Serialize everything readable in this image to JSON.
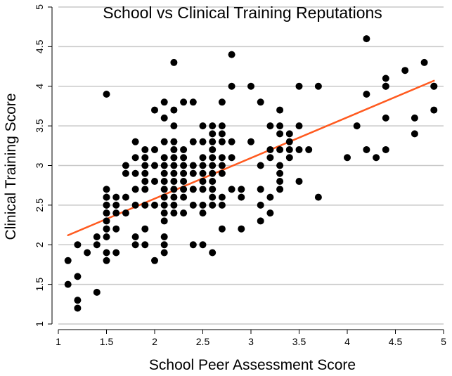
{
  "chart_data": {
    "type": "scatter",
    "title": "School vs Clinical Training Reputations",
    "xlabel": "School Peer Assessment Score",
    "ylabel": "Clinical Training Score",
    "xlim": [
      1,
      5
    ],
    "ylim": [
      1,
      5
    ],
    "x_ticks": [
      "1",
      "1.5",
      "2",
      "2.5",
      "3",
      "3.5",
      "4",
      "4.5",
      "5"
    ],
    "y_ticks": [
      "1",
      "1.5",
      "2",
      "2.5",
      "3",
      "3.5",
      "4",
      "4.5",
      "5"
    ],
    "grid": "horizontal",
    "colors": {
      "points": "#000000",
      "trendline": "#ff5a1f",
      "grid": "#c8c8c8",
      "axis": "#000000"
    },
    "trendline": {
      "x": [
        1.1,
        4.9
      ],
      "y": [
        2.12,
        4.07
      ]
    },
    "points": {
      "x": [
        1.1,
        1.1,
        1.2,
        1.2,
        1.2,
        1.2,
        1.3,
        1.4,
        1.4,
        1.4,
        1.5,
        1.5,
        1.5,
        1.5,
        1.5,
        1.5,
        1.5,
        1.5,
        1.5,
        1.5,
        1.5,
        1.5,
        1.5,
        1.5,
        1.6,
        1.6,
        1.6,
        1.6,
        1.6,
        1.7,
        1.7,
        1.7,
        1.7,
        1.8,
        1.8,
        1.8,
        1.8,
        1.8,
        1.8,
        1.8,
        1.9,
        1.9,
        1.9,
        1.9,
        1.9,
        1.9,
        1.9,
        1.9,
        1.9,
        2.0,
        2.0,
        2.0,
        2.0,
        2.0,
        2.0,
        2.1,
        2.1,
        2.1,
        2.1,
        2.1,
        2.1,
        2.1,
        2.1,
        2.1,
        2.1,
        2.1,
        2.1,
        2.1,
        2.1,
        2.1,
        2.2,
        2.2,
        2.2,
        2.2,
        2.2,
        2.2,
        2.2,
        2.2,
        2.2,
        2.2,
        2.2,
        2.2,
        2.2,
        2.3,
        2.3,
        2.3,
        2.3,
        2.3,
        2.3,
        2.3,
        2.3,
        2.3,
        2.4,
        2.4,
        2.4,
        2.4,
        2.4,
        2.4,
        2.4,
        2.5,
        2.5,
        2.5,
        2.5,
        2.5,
        2.5,
        2.5,
        2.5,
        2.5,
        2.5,
        2.6,
        2.6,
        2.6,
        2.6,
        2.6,
        2.6,
        2.6,
        2.6,
        2.6,
        2.6,
        2.6,
        2.6,
        2.7,
        2.7,
        2.7,
        2.7,
        2.7,
        2.7,
        2.7,
        2.7,
        2.7,
        2.7,
        2.8,
        2.8,
        2.8,
        2.8,
        2.8,
        2.9,
        2.9,
        2.9,
        3.0,
        3.0,
        3.1,
        3.1,
        3.1,
        3.1,
        3.1,
        3.2,
        3.2,
        3.2,
        3.2,
        3.2,
        3.3,
        3.3,
        3.3,
        3.3,
        3.3,
        3.3,
        3.3,
        3.3,
        3.4,
        3.4,
        3.4,
        3.4,
        3.5,
        3.5,
        3.5,
        3.5,
        3.6,
        3.7,
        3.7,
        4.0,
        4.1,
        4.2,
        4.2,
        4.2,
        4.3,
        4.4,
        4.4,
        4.4,
        4.4,
        4.4,
        4.6,
        4.7,
        4.7,
        4.8,
        4.9,
        4.9,
        4.9
      ],
      "y": [
        1.8,
        1.5,
        2.0,
        1.6,
        1.3,
        1.2,
        1.9,
        2.1,
        2.0,
        1.4,
        3.9,
        2.7,
        2.6,
        2.5,
        2.4,
        2.3,
        2.2,
        2.1,
        1.9,
        1.8,
        2.6,
        2.5,
        2.4,
        2.2,
        2.6,
        2.5,
        2.4,
        2.2,
        1.9,
        3.0,
        2.9,
        2.6,
        2.4,
        3.3,
        3.1,
        2.9,
        2.7,
        2.5,
        2.1,
        2.0,
        3.2,
        3.1,
        3.0,
        2.9,
        2.8,
        2.7,
        2.5,
        2.2,
        2.0,
        3.7,
        3.2,
        3.0,
        2.8,
        2.5,
        1.8,
        3.8,
        3.6,
        3.3,
        3.1,
        3.0,
        2.9,
        2.8,
        2.7,
        2.6,
        2.5,
        2.4,
        2.3,
        2.1,
        2.0,
        1.9,
        4.3,
        3.7,
        3.5,
        3.3,
        3.2,
        3.1,
        3.0,
        2.9,
        2.8,
        2.7,
        2.6,
        2.5,
        2.4,
        3.8,
        3.2,
        3.1,
        3.0,
        2.9,
        2.8,
        2.7,
        2.6,
        2.4,
        3.8,
        3.3,
        3.0,
        2.9,
        2.7,
        2.5,
        2.0,
        3.5,
        3.3,
        3.1,
        3.0,
        2.9,
        2.8,
        2.7,
        2.5,
        2.4,
        2.0,
        3.5,
        3.4,
        3.3,
        3.2,
        3.1,
        3.0,
        2.9,
        2.8,
        2.7,
        2.6,
        2.5,
        1.9,
        3.8,
        3.5,
        3.4,
        3.3,
        3.1,
        3.0,
        2.9,
        2.6,
        2.5,
        2.2,
        4.4,
        4.0,
        3.3,
        3.1,
        2.7,
        2.7,
        2.6,
        2.2,
        4.0,
        3.3,
        3.8,
        3.0,
        2.7,
        2.5,
        2.3,
        3.5,
        3.2,
        3.1,
        2.6,
        2.4,
        3.7,
        3.5,
        3.4,
        3.2,
        3.0,
        2.9,
        2.8,
        2.7,
        3.4,
        3.3,
        3.2,
        3.1,
        4.0,
        3.5,
        3.2,
        2.8,
        3.2,
        4.0,
        2.6,
        3.1,
        3.5,
        4.6,
        3.9,
        3.2,
        3.1,
        4.1,
        4.0,
        3.6,
        3.2,
        4.0,
        4.2,
        3.6,
        3.4,
        4.3,
        4.0,
        3.7,
        4.0
      ]
    }
  }
}
